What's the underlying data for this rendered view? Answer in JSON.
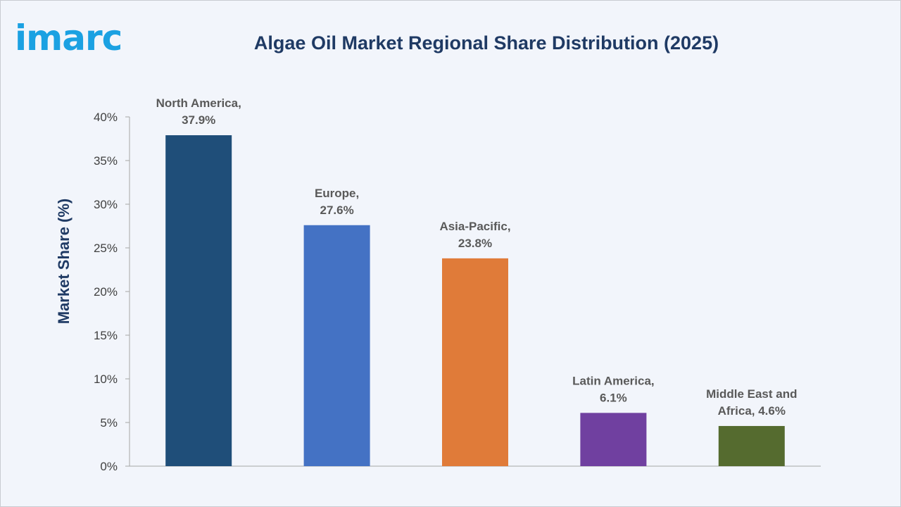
{
  "logo": {
    "text": "imarc",
    "color": "#1ba1e2"
  },
  "title_color": "#1f3a64",
  "chart_data": {
    "type": "bar",
    "title": "Algae Oil Market Regional Share Distribution (2025)",
    "xlabel": "",
    "ylabel": "Market Share (%)",
    "ylim": [
      0,
      40
    ],
    "yticks": [
      0,
      5,
      10,
      15,
      20,
      25,
      30,
      35,
      40
    ],
    "ytick_suffix": "%",
    "categories": [
      "North America",
      "Europe",
      "Asia-Pacific",
      "Latin America",
      "Middle East and Africa"
    ],
    "values": [
      37.9,
      27.6,
      23.8,
      6.1,
      4.6
    ],
    "data_labels": [
      [
        "North America,",
        "37.9%"
      ],
      [
        "Europe,",
        "27.6%"
      ],
      [
        "Asia-Pacific,",
        "23.8%"
      ],
      [
        "Latin America,",
        "6.1%"
      ],
      [
        "Middle East and",
        "Africa, 4.6%"
      ]
    ],
    "colors": [
      "#1f4e79",
      "#4472c4",
      "#e07b39",
      "#7040a0",
      "#556b2f"
    ],
    "grid": false,
    "legend": "none"
  }
}
